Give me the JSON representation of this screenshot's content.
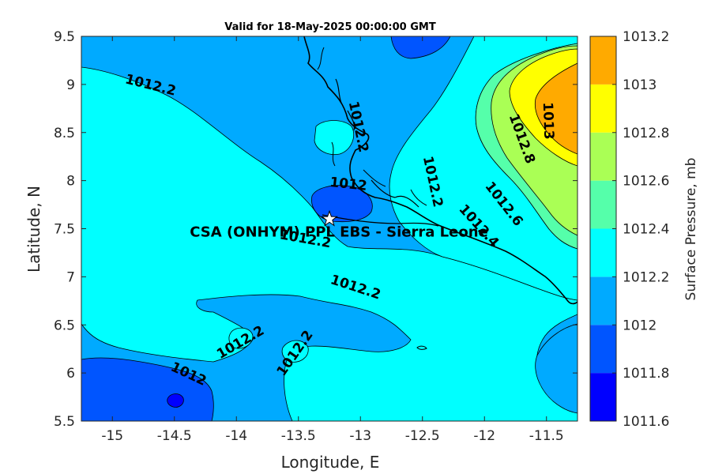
{
  "title": "Valid for 18-May-2025 00:00:00 GMT",
  "chart_data": {
    "type": "contour-map",
    "xlabel": "Longitude, E",
    "ylabel": "Latitude, N",
    "xlim": [
      -15.25,
      -11.25
    ],
    "ylim": [
      5.5,
      9.5
    ],
    "xticks": [
      -15,
      -14.5,
      -14,
      -13.5,
      -13,
      -12.5,
      -12,
      -11.5
    ],
    "xtick_labels": [
      "-15",
      "-14.5",
      "-14",
      "-13.5",
      "-13",
      "-12.5",
      "-12",
      "-11.5"
    ],
    "yticks": [
      5.5,
      6,
      6.5,
      7,
      7.5,
      8,
      8.5,
      9,
      9.5
    ],
    "ytick_labels": [
      "5.5",
      "6",
      "6.5",
      "7",
      "7.5",
      "8",
      "8.5",
      "9",
      "9.5"
    ],
    "colorbar": {
      "label": "Surface Pressure, mb",
      "levels": [
        1011.6,
        1011.8,
        1012,
        1012.2,
        1012.4,
        1012.6,
        1012.8,
        1013,
        1013.2
      ],
      "level_labels": [
        "1011.6",
        "1011.8",
        "1012",
        "1012.2",
        "1012.4",
        "1012.6",
        "1012.8",
        "1013",
        "1013.2"
      ],
      "colors": [
        "#0000ff",
        "#0055ff",
        "#00aaff",
        "#00ffff",
        "#55ffaa",
        "#aaff55",
        "#ffff00",
        "#ffaa00",
        "#ff5500"
      ]
    },
    "station": {
      "name": "CSA (ONHYM) PPL EBS  - Sierra Leone",
      "lon": -13.25,
      "lat": 7.6
    },
    "contour_labels": [
      {
        "text": "1012.2",
        "lon": -14.7,
        "lat": 8.95,
        "angle": 14
      },
      {
        "text": "1012.2",
        "lon": -13.05,
        "lat": 8.55,
        "angle": 78
      },
      {
        "text": "1012",
        "lon": -13.1,
        "lat": 7.92,
        "angle": 6
      },
      {
        "text": "1012.2",
        "lon": -12.45,
        "lat": 7.98,
        "angle": 78
      },
      {
        "text": "1012.2",
        "lon": -13.45,
        "lat": 7.35,
        "angle": 10
      },
      {
        "text": "1012.2",
        "lon": -13.05,
        "lat": 6.85,
        "angle": 18
      },
      {
        "text": "1012.2",
        "lon": -13.95,
        "lat": 6.28,
        "angle": -30
      },
      {
        "text": "1012.2",
        "lon": -13.5,
        "lat": 6.18,
        "angle": -55
      },
      {
        "text": "1012",
        "lon": -14.4,
        "lat": 5.95,
        "angle": 25
      },
      {
        "text": "1013",
        "lon": -11.52,
        "lat": 8.62,
        "angle": 88
      },
      {
        "text": "1012.8",
        "lon": -11.73,
        "lat": 8.42,
        "angle": 70
      },
      {
        "text": "1012.6",
        "lon": -11.87,
        "lat": 7.73,
        "angle": 52
      },
      {
        "text": "1012.4",
        "lon": -12.07,
        "lat": 7.5,
        "angle": 48
      }
    ]
  }
}
